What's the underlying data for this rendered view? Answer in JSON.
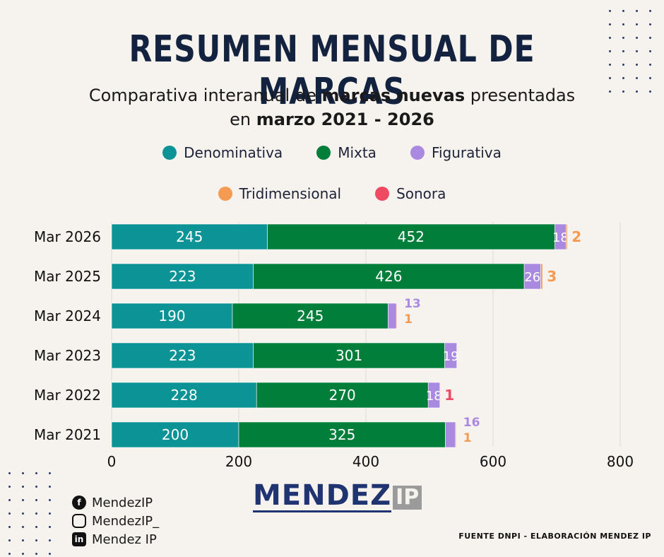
{
  "title": "RESUMEN MENSUAL DE MARCAS",
  "subtitle": {
    "part1": "Comparativa interanual de ",
    "bold1": "marcas nuevas",
    "part2": "  presentadas",
    "part3": "en ",
    "bold2": "marzo 2021 - 2026"
  },
  "legend": [
    {
      "label": "Denominativa",
      "color": "#0c9396"
    },
    {
      "label": "Mixta",
      "color": "#007e3a"
    },
    {
      "label": "Figurativa",
      "color": "#a98ae0"
    },
    {
      "label": "Tridimensional",
      "color": "#f59a52"
    },
    {
      "label": "Sonora",
      "color": "#ef4a62"
    }
  ],
  "chart_data": {
    "type": "bar",
    "orientation": "horizontal",
    "stacked": true,
    "categories": [
      "Mar 2026",
      "Mar 2025",
      "Mar 2024",
      "Mar 2023",
      "Mar 2022",
      "Mar 2021"
    ],
    "series": [
      {
        "name": "Denominativa",
        "color": "#0c9396",
        "values": [
          245,
          223,
          190,
          223,
          228,
          200
        ]
      },
      {
        "name": "Mixta",
        "color": "#007e3a",
        "values": [
          452,
          426,
          245,
          301,
          270,
          325
        ]
      },
      {
        "name": "Figurativa",
        "color": "#a98ae0",
        "values": [
          18,
          26,
          13,
          19,
          18,
          16
        ]
      },
      {
        "name": "Tridimensional",
        "color": "#f59a52",
        "values": [
          2,
          3,
          1,
          0,
          0,
          1
        ]
      },
      {
        "name": "Sonora",
        "color": "#ef4a62",
        "values": [
          0,
          0,
          0,
          0,
          1,
          0
        ]
      }
    ],
    "xlim": [
      0,
      800
    ],
    "xticks": [
      "0",
      "200",
      "400",
      "600",
      "800"
    ],
    "grid": true,
    "legend_position": "top"
  },
  "social": [
    {
      "icon": "facebook-icon",
      "glyph": "f",
      "label": "MendezIP"
    },
    {
      "icon": "instagram-icon",
      "glyph": "",
      "label": "MendezIP_"
    },
    {
      "icon": "linkedin-icon",
      "glyph": "in",
      "label": "Mendez IP"
    }
  ],
  "logo": {
    "main": "MENDEZ",
    "suffix": "IP"
  },
  "source": "FUENTE DNPI - ELABORACIÓN MENDEZ IP"
}
